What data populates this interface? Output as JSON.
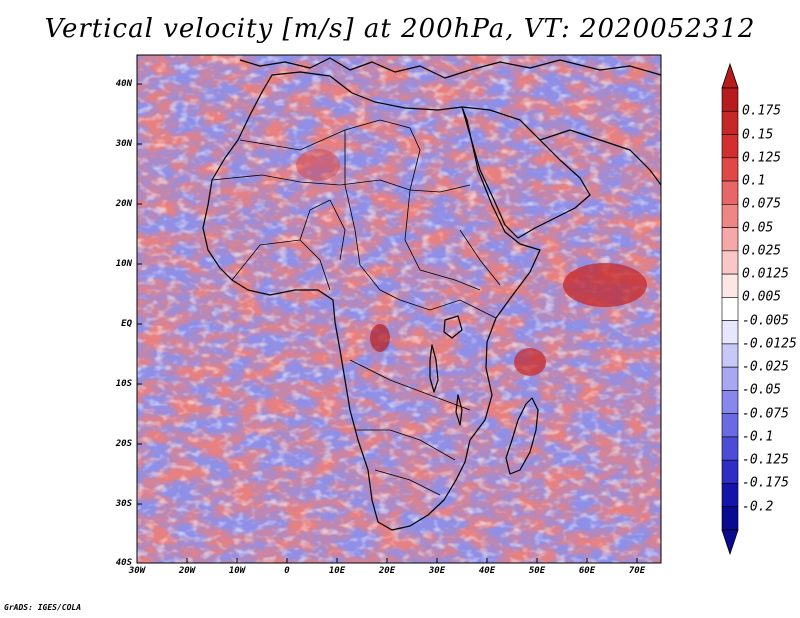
{
  "title": "Vertical velocity [m/s] at 200hPa, VT: 2020052312",
  "credit": "GrADS: IGES/COLA",
  "map": {
    "lat_ticks": [
      "40N",
      "30N",
      "20N",
      "10N",
      "EQ",
      "10S",
      "20S",
      "30S",
      "40S"
    ],
    "lon_ticks": [
      "30W",
      "20W",
      "10W",
      "0",
      "10E",
      "20E",
      "30E",
      "40E",
      "50E",
      "60E",
      "70E"
    ],
    "lon_range": [
      -30,
      75
    ],
    "lat_range": [
      -40,
      45
    ]
  },
  "colorbar": {
    "labels": [
      "0.175",
      "0.15",
      "0.125",
      "0.1",
      "0.075",
      "0.05",
      "0.025",
      "0.0125",
      "0.005",
      "-0.005",
      "-0.0125",
      "-0.025",
      "-0.05",
      "-0.075",
      "-0.1",
      "-0.125",
      "-0.175",
      "-0.2"
    ],
    "colors": [
      "#b71c1c",
      "#c62828",
      "#d32f2f",
      "#e04848",
      "#e86666",
      "#ee8686",
      "#f4a8a8",
      "#f8c8c8",
      "#fce6e6",
      "#ffffff",
      "#e6e6fc",
      "#c8c8f8",
      "#a8a8f2",
      "#8888ec",
      "#6a6ae2",
      "#4c4cd6",
      "#2e2ec6",
      "#1414aa",
      "#0a0a90"
    ],
    "triangle_colors": {
      "top": "#b71c1c",
      "bottom": "#0a0a90"
    }
  },
  "palette": {
    "blue_field": "#8c8ce6",
    "red_field": "#e88c8c",
    "white_field": "#ffffff",
    "border": "#000000"
  }
}
